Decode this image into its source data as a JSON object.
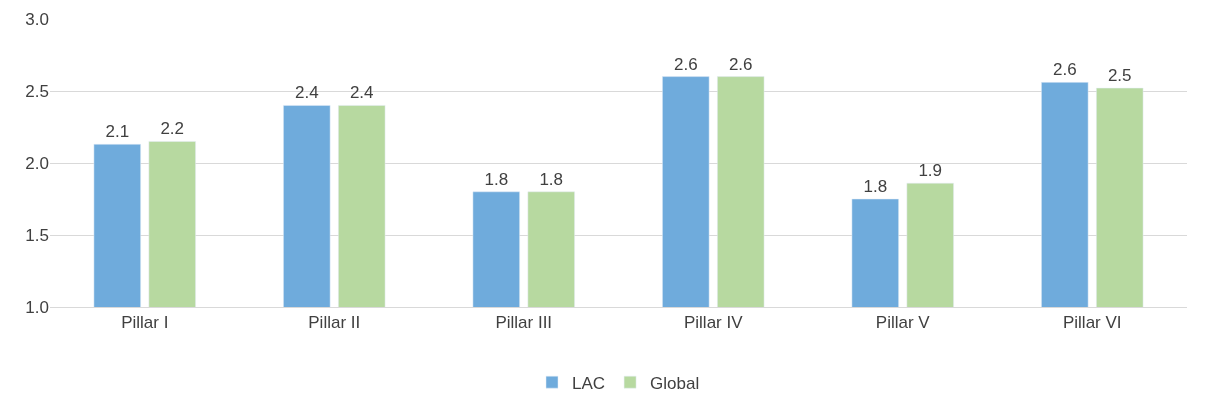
{
  "chart_data": {
    "type": "bar",
    "categories": [
      "Pillar I",
      "Pillar II",
      "Pillar III",
      "Pillar IV",
      "Pillar V",
      "Pillar VI"
    ],
    "series": [
      {
        "name": "LAC",
        "color": "#6fabdc",
        "values": [
          2.13,
          2.4,
          1.8,
          2.6,
          1.75,
          2.56
        ],
        "value_labels": [
          "2.1",
          "2.4",
          "1.8",
          "2.6",
          "1.8",
          "2.6"
        ]
      },
      {
        "name": "Global",
        "color": "#b7d9a0",
        "values": [
          2.15,
          2.4,
          1.8,
          2.6,
          1.86,
          2.52
        ],
        "value_labels": [
          "2.2",
          "2.4",
          "1.8",
          "2.6",
          "1.9",
          "2.5"
        ]
      }
    ],
    "ylim": [
      1.0,
      3.0
    ],
    "yticks": [
      {
        "value": 1.0,
        "label": "1.0"
      },
      {
        "value": 1.5,
        "label": "1.5"
      },
      {
        "value": 2.0,
        "label": "2.0"
      },
      {
        "value": 2.5,
        "label": "2.5"
      },
      {
        "value": 3.0,
        "label": "3.0"
      }
    ],
    "grid": "y",
    "legend": "bottom"
  }
}
